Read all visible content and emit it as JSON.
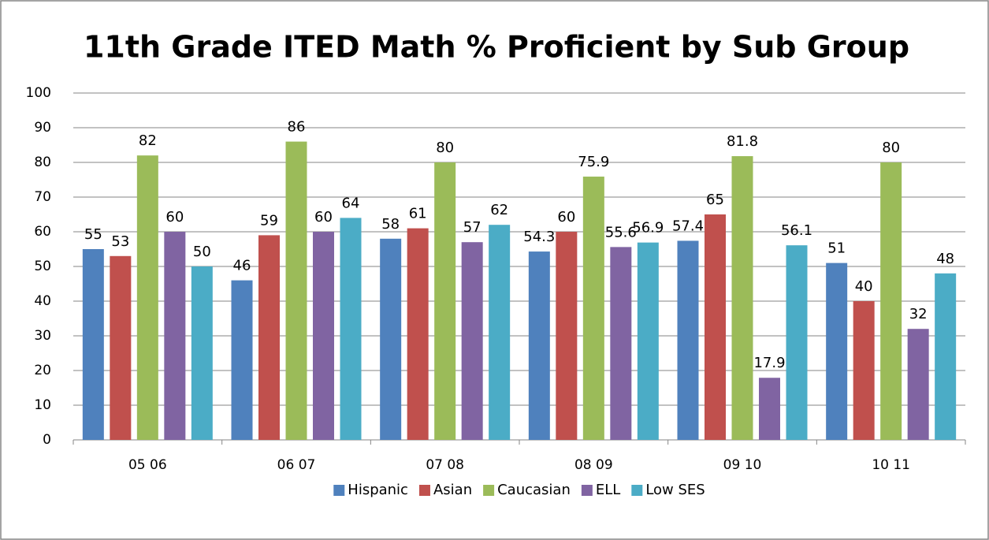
{
  "chart_data": {
    "type": "bar",
    "title": "11th Grade ITED Math % Proficient by Sub Group",
    "categories": [
      "05 06",
      "06 07",
      "07 08",
      "08 09",
      "09 10",
      "10 11"
    ],
    "series": [
      {
        "name": "Hispanic",
        "color": "#4f81bd",
        "values": [
          55,
          46,
          58,
          54.3,
          57.4,
          51
        ]
      },
      {
        "name": "Asian",
        "color": "#c0504d",
        "values": [
          53,
          59,
          61,
          60,
          65,
          40
        ]
      },
      {
        "name": "Caucasian",
        "color": "#9bbb59",
        "values": [
          82,
          86,
          80,
          75.9,
          81.8,
          80
        ]
      },
      {
        "name": "ELL",
        "color": "#8064a2",
        "values": [
          60,
          60,
          57,
          55.6,
          17.9,
          32
        ]
      },
      {
        "name": "Low SES",
        "color": "#4bacc6",
        "values": [
          50,
          64,
          62,
          56.9,
          56.1,
          48
        ]
      }
    ],
    "ylim": [
      0,
      100
    ],
    "yticks": [
      0,
      10,
      20,
      30,
      40,
      50,
      60,
      70,
      80,
      90,
      100
    ],
    "grid": true,
    "legend": "bottom"
  }
}
